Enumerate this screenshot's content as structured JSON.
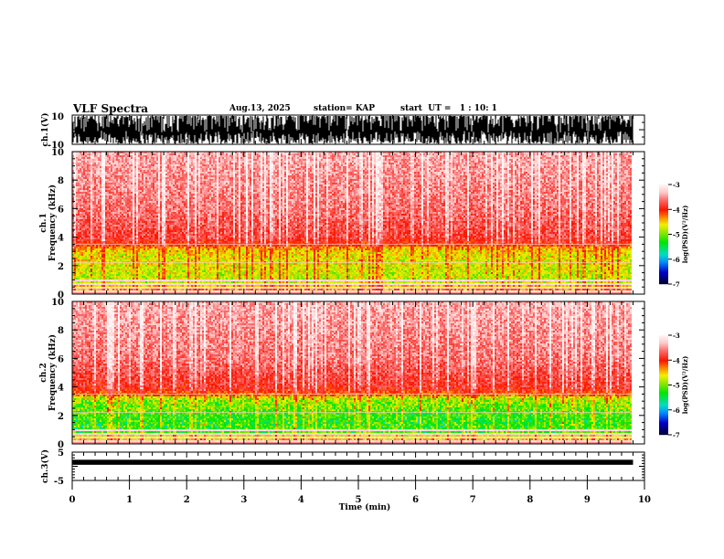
{
  "header": {
    "title": "VLF Spectra",
    "date": "Aug.13, 2025",
    "station": "station= KAP",
    "start": "start  UT =   1 : 10: 1"
  },
  "chart_data": [
    {
      "type": "line",
      "name": "ch1-waveform",
      "ylabel": "ch.1(V)",
      "ylim": [
        -10,
        10
      ],
      "yticks": [
        "10",
        "-10"
      ],
      "xlim": [
        0,
        10
      ],
      "data_end_min": 9.8,
      "description_values": "dense noisy waveform saturating between -10 and 10 V"
    },
    {
      "type": "heatmap",
      "name": "ch1-spectrogram",
      "ylabel_top": "ch.1",
      "ylabel": "Frequency  (kHz)",
      "ylim": [
        0,
        10
      ],
      "yticks": [
        "0",
        "2",
        "4",
        "6",
        "8",
        "10"
      ],
      "xlim": [
        0,
        10
      ],
      "data_end_min": 9.8,
      "colorbar": {
        "label": "log(PSD)(V²/Hz)",
        "range": [
          -7,
          -3
        ],
        "ticks": [
          "-3",
          "-4",
          "-5",
          "-6",
          "-7"
        ]
      },
      "band_profile_khz": [
        [
          0,
          -4.2
        ],
        [
          1,
          -4.6
        ],
        [
          2,
          -4.5
        ],
        [
          3,
          -4.4
        ],
        [
          4,
          -3.8
        ],
        [
          6,
          -3.6
        ],
        [
          8,
          -3.5
        ],
        [
          10,
          -3.4
        ]
      ]
    },
    {
      "type": "heatmap",
      "name": "ch2-spectrogram",
      "ylabel_top": "ch.2",
      "ylabel": "Frequency  (kHz)",
      "ylim": [
        0,
        10
      ],
      "yticks": [
        "0",
        "2",
        "4",
        "6",
        "8",
        "10"
      ],
      "xlim": [
        0,
        10
      ],
      "data_end_min": 9.8,
      "colorbar": {
        "label": "log(PSD)(V²/Hz)",
        "range": [
          -7,
          -3
        ],
        "ticks": [
          "-3",
          "-4",
          "-5",
          "-6",
          "-7"
        ]
      },
      "band_profile_khz": [
        [
          0,
          -4.3
        ],
        [
          1,
          -4.9
        ],
        [
          2,
          -4.9
        ],
        [
          3,
          -4.6
        ],
        [
          4,
          -3.9
        ],
        [
          6,
          -3.6
        ],
        [
          8,
          -3.5
        ],
        [
          10,
          -3.4
        ]
      ]
    },
    {
      "type": "line",
      "name": "ch3-waveform",
      "ylabel": "ch.3(V)",
      "ylim": [
        -5,
        5
      ],
      "yticks": [
        "5",
        "-5"
      ],
      "xlim": [
        0,
        10
      ],
      "data_end_min": 9.8,
      "level_v": 1.5
    }
  ],
  "xaxis": {
    "label": "Time  (min)",
    "ticks": [
      "0",
      "1",
      "2",
      "3",
      "4",
      "5",
      "6",
      "7",
      "8",
      "9",
      "10"
    ]
  }
}
